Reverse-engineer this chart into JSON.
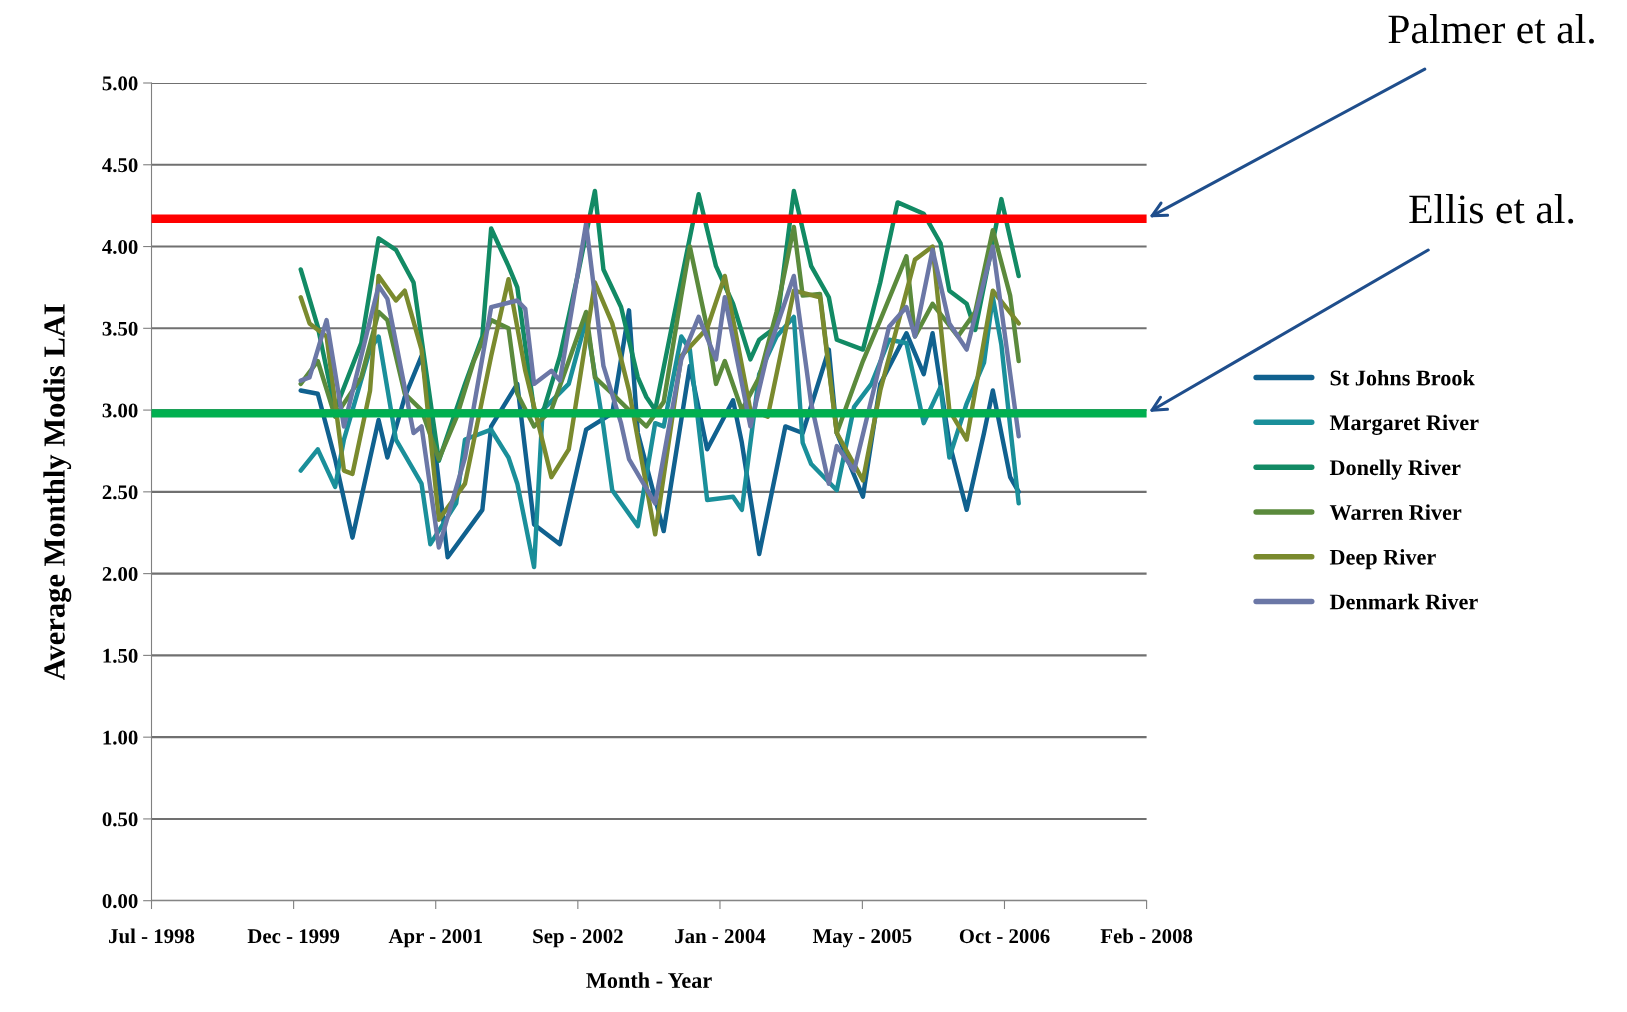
{
  "chart_data": {
    "type": "line",
    "xlabel": "Month - Year",
    "ylabel": "Average Monthly Modis LAI",
    "xlim": [
      "1998-07-25",
      "2008-02-24"
    ],
    "xticks": [
      {
        "value": "1998-07-25",
        "label": "Jul - 1998"
      },
      {
        "value": "1999-12-07",
        "label": "Dec - 1999"
      },
      {
        "value": "2001-04-20",
        "label": "Apr - 2001"
      },
      {
        "value": "2002-09-02",
        "label": "Sep - 2002"
      },
      {
        "value": "2004-01-15",
        "label": "Jan - 2004"
      },
      {
        "value": "2005-05-30",
        "label": "May - 2005"
      },
      {
        "value": "2006-10-12",
        "label": "Oct - 2006"
      },
      {
        "value": "2008-02-24",
        "label": "Feb - 2008"
      }
    ],
    "ylim": [
      0,
      5
    ],
    "yticks": [
      {
        "value": 0,
        "label": "0.00"
      },
      {
        "value": 0.5,
        "label": "0.50"
      },
      {
        "value": 1,
        "label": "1.00"
      },
      {
        "value": 1.5,
        "label": "1.50"
      },
      {
        "value": 2,
        "label": "2.00"
      },
      {
        "value": 2.5,
        "label": "2.50"
      },
      {
        "value": 3,
        "label": "3.00"
      },
      {
        "value": 3.5,
        "label": "3.50"
      },
      {
        "value": 4,
        "label": "4.00"
      },
      {
        "value": 4.5,
        "label": "4.50"
      },
      {
        "value": 5,
        "label": "5.00"
      }
    ],
    "grid": "y",
    "legend": "right",
    "marker": "none",
    "line_style": "solid",
    "ref_lines": [
      {
        "axis": "y",
        "value": 4.17,
        "label": "Palmer et al.",
        "color": "#ff0000"
      },
      {
        "axis": "y",
        "value": 2.98,
        "label": "Ellis et al.",
        "color": "#00b050"
      }
    ],
    "series": [
      {
        "name": "St Johns Brook",
        "color": "#10618f",
        "x": [
          "2000-01",
          "2000-03",
          "2000-05",
          "2000-07",
          "2000-10",
          "2000-11",
          "2001-01",
          "2001-03",
          "2001-04",
          "2001-06",
          "2001-10",
          "2001-11",
          "2002-02",
          "2002-04",
          "2002-07",
          "2002-10",
          "2003-01",
          "2003-03",
          "2003-04",
          "2003-07",
          "2003-10",
          "2003-12",
          "2004-03",
          "2004-04",
          "2004-06",
          "2004-09",
          "2004-11",
          "2005-02",
          "2005-03",
          "2005-06",
          "2005-08",
          "2005-11",
          "2006-01",
          "2006-02",
          "2006-04",
          "2006-06",
          "2006-08",
          "2006-09",
          "2006-11",
          "2006-12"
        ],
        "values": [
          3.12,
          3.1,
          2.7,
          2.22,
          2.94,
          2.71,
          3.08,
          3.33,
          3.0,
          2.1,
          2.39,
          2.9,
          3.16,
          2.3,
          2.18,
          2.88,
          2.98,
          3.61,
          2.86,
          2.26,
          3.27,
          2.76,
          3.06,
          2.8,
          2.12,
          2.9,
          2.86,
          3.37,
          2.86,
          2.47,
          3.16,
          3.47,
          3.22,
          3.47,
          2.8,
          2.39,
          2.86,
          3.12,
          2.59,
          2.5
        ]
      },
      {
        "name": "Margaret River",
        "color": "#1a8f9a",
        "x": [
          "2000-01",
          "2000-03",
          "2000-05",
          "2000-06",
          "2000-09",
          "2000-10",
          "2000-12",
          "2001-03",
          "2001-04",
          "2001-07",
          "2001-08",
          "2001-11",
          "2002-01",
          "2002-02",
          "2002-04",
          "2002-05",
          "2002-08",
          "2002-10",
          "2002-12",
          "2003-01",
          "2003-04",
          "2003-06",
          "2003-07",
          "2003-09",
          "2003-10",
          "2003-12",
          "2004-03",
          "2004-04",
          "2004-06",
          "2004-08",
          "2004-10",
          "2004-11",
          "2004-12",
          "2005-03",
          "2005-05",
          "2005-07",
          "2005-09",
          "2005-11",
          "2006-01",
          "2006-03",
          "2006-04",
          "2006-06",
          "2006-08",
          "2006-09",
          "2006-10",
          "2006-11",
          "2006-12"
        ],
        "values": [
          2.63,
          2.76,
          2.53,
          2.82,
          3.37,
          3.45,
          2.82,
          2.55,
          2.18,
          2.43,
          2.82,
          2.88,
          2.71,
          2.55,
          2.04,
          3.0,
          3.16,
          3.55,
          2.9,
          2.51,
          2.29,
          2.92,
          2.9,
          3.45,
          3.37,
          2.45,
          2.47,
          2.39,
          3.22,
          3.45,
          3.57,
          2.8,
          2.67,
          2.51,
          3.02,
          3.16,
          3.43,
          3.41,
          2.92,
          3.14,
          2.71,
          3.04,
          3.29,
          3.69,
          3.4,
          2.9,
          2.43
        ]
      },
      {
        "name": "Donelly River",
        "color": "#128a64",
        "x": [
          "2000-01",
          "2000-03",
          "2000-05",
          "2000-08",
          "2000-10",
          "2000-12",
          "2001-02",
          "2001-05",
          "2001-08",
          "2001-10",
          "2001-11",
          "2002-01",
          "2002-02",
          "2002-04",
          "2002-05",
          "2002-07",
          "2002-09",
          "2002-11",
          "2002-12",
          "2003-02",
          "2003-04",
          "2003-05",
          "2003-06",
          "2003-08",
          "2003-11",
          "2004-01",
          "2004-03",
          "2004-05",
          "2004-06",
          "2004-08",
          "2004-10",
          "2004-12",
          "2005-02",
          "2005-03",
          "2005-06",
          "2005-08",
          "2005-10",
          "2006-01",
          "2006-03",
          "2006-04",
          "2006-06",
          "2006-07",
          "2006-10",
          "2006-12"
        ],
        "values": [
          3.86,
          3.51,
          3.0,
          3.41,
          4.05,
          3.98,
          3.78,
          2.69,
          3.16,
          3.45,
          4.11,
          3.88,
          3.75,
          3.0,
          2.98,
          3.33,
          3.82,
          4.34,
          3.86,
          3.63,
          3.2,
          3.08,
          3.0,
          3.53,
          4.32,
          3.88,
          3.65,
          3.31,
          3.43,
          3.51,
          4.34,
          3.88,
          3.69,
          3.43,
          3.37,
          3.78,
          4.27,
          4.2,
          4.02,
          3.73,
          3.65,
          3.49,
          4.29,
          3.82
        ]
      },
      {
        "name": "Warren River",
        "color": "#5b8a3c",
        "x": [
          "2000-01",
          "2000-03",
          "2000-05",
          "2000-08",
          "2000-10",
          "2000-11",
          "2001-01",
          "2001-03",
          "2001-05",
          "2001-07",
          "2001-09",
          "2001-11",
          "2002-01",
          "2002-02",
          "2002-04",
          "2002-06",
          "2002-08",
          "2002-10",
          "2002-11",
          "2003-01",
          "2003-03",
          "2003-05",
          "2003-07",
          "2003-09",
          "2003-10",
          "2003-12",
          "2004-01",
          "2004-02",
          "2004-04",
          "2004-06",
          "2004-08",
          "2004-10",
          "2004-11",
          "2005-01",
          "2005-03",
          "2005-06",
          "2005-08",
          "2005-11",
          "2005-12",
          "2006-02",
          "2006-05",
          "2006-07",
          "2006-09",
          "2006-11",
          "2006-12"
        ],
        "values": [
          3.16,
          3.3,
          2.96,
          3.2,
          3.6,
          3.55,
          3.1,
          3.0,
          2.7,
          2.95,
          3.3,
          3.55,
          3.5,
          3.1,
          2.9,
          3.0,
          3.3,
          3.6,
          3.2,
          3.1,
          3.0,
          2.9,
          3.05,
          3.7,
          4.0,
          3.5,
          3.16,
          3.3,
          3.0,
          3.2,
          3.6,
          4.12,
          3.7,
          3.71,
          2.86,
          3.3,
          3.55,
          3.94,
          3.45,
          3.65,
          3.45,
          3.6,
          4.1,
          3.7,
          3.3
        ]
      },
      {
        "name": "Deep River",
        "color": "#7a8a2e",
        "x": [
          "2000-01",
          "2000-02",
          "2000-04",
          "2000-06",
          "2000-07",
          "2000-09",
          "2000-10",
          "2000-12",
          "2001-01",
          "2001-03",
          "2001-05",
          "2001-08",
          "2001-11",
          "2002-01",
          "2002-03",
          "2002-06",
          "2002-08",
          "2002-11",
          "2003-01",
          "2003-03",
          "2003-06",
          "2003-09",
          "2003-12",
          "2004-02",
          "2004-05",
          "2004-07",
          "2004-10",
          "2005-01",
          "2005-03",
          "2005-06",
          "2005-08",
          "2005-12",
          "2006-02",
          "2006-04",
          "2006-06",
          "2006-09",
          "2006-12"
        ],
        "values": [
          3.69,
          3.53,
          3.45,
          2.63,
          2.61,
          3.12,
          3.82,
          3.67,
          3.73,
          3.37,
          2.33,
          2.55,
          3.33,
          3.8,
          3.24,
          2.59,
          2.76,
          3.78,
          3.53,
          3.12,
          2.24,
          3.33,
          3.5,
          3.82,
          3.0,
          2.96,
          3.73,
          3.69,
          2.86,
          2.57,
          3.12,
          3.92,
          4.0,
          3.0,
          2.82,
          3.73,
          3.53
        ]
      },
      {
        "name": "Denmark River",
        "color": "#6b77a6",
        "x": [
          "2000-01",
          "2000-02",
          "2000-04",
          "2000-06",
          "2000-10",
          "2000-11",
          "2001-02",
          "2001-03",
          "2001-05",
          "2001-08",
          "2001-11",
          "2002-02",
          "2002-03",
          "2002-04",
          "2002-06",
          "2002-07",
          "2002-10",
          "2002-12",
          "2003-02",
          "2003-03",
          "2003-06",
          "2003-09",
          "2003-11",
          "2004-01",
          "2004-02",
          "2004-05",
          "2004-07",
          "2004-10",
          "2004-12",
          "2005-02",
          "2005-03",
          "2005-05",
          "2005-09",
          "2005-11",
          "2005-12",
          "2006-02",
          "2006-04",
          "2006-06",
          "2006-09",
          "2006-12"
        ],
        "values": [
          3.18,
          3.2,
          3.55,
          2.9,
          3.76,
          3.68,
          2.86,
          2.9,
          2.16,
          2.71,
          3.63,
          3.67,
          3.62,
          3.16,
          3.24,
          3.18,
          4.14,
          3.27,
          2.92,
          2.7,
          2.43,
          3.31,
          3.57,
          3.31,
          3.69,
          2.9,
          3.35,
          3.82,
          3.04,
          2.55,
          2.78,
          2.63,
          3.51,
          3.63,
          3.45,
          3.98,
          3.53,
          3.37,
          4.0,
          2.84
        ]
      }
    ]
  }
}
